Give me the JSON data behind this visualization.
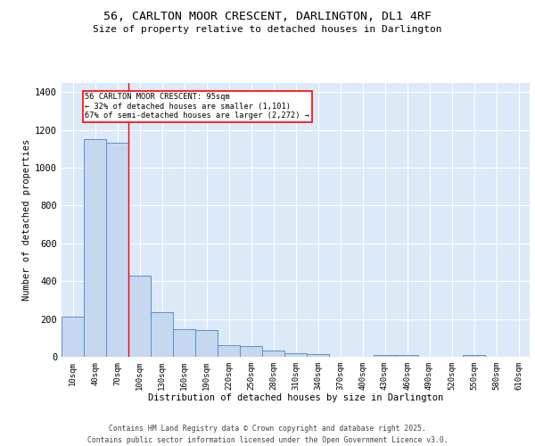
{
  "title_line1": "56, CARLTON MOOR CRESCENT, DARLINGTON, DL1 4RF",
  "title_line2": "Size of property relative to detached houses in Darlington",
  "xlabel": "Distribution of detached houses by size in Darlington",
  "ylabel": "Number of detached properties",
  "categories": [
    "10sqm",
    "40sqm",
    "70sqm",
    "100sqm",
    "130sqm",
    "160sqm",
    "190sqm",
    "220sqm",
    "250sqm",
    "280sqm",
    "310sqm",
    "340sqm",
    "370sqm",
    "400sqm",
    "430sqm",
    "460sqm",
    "490sqm",
    "520sqm",
    "550sqm",
    "580sqm",
    "610sqm"
  ],
  "values": [
    210,
    1150,
    1130,
    430,
    235,
    145,
    140,
    60,
    55,
    35,
    20,
    15,
    0,
    0,
    10,
    10,
    0,
    0,
    10,
    0,
    0
  ],
  "bar_color": "#c5d8f0",
  "bar_edge_color": "#5b8fc9",
  "red_line_index": 3,
  "annotation_title": "56 CARLTON MOOR CRESCENT: 95sqm",
  "annotation_line1": "← 32% of detached houses are smaller (1,101)",
  "annotation_line2": "67% of semi-detached houses are larger (2,272) →",
  "ylim": [
    0,
    1450
  ],
  "yticks": [
    0,
    200,
    400,
    600,
    800,
    1000,
    1200,
    1400
  ],
  "bg_color": "#dce9f8",
  "footer_line1": "Contains HM Land Registry data © Crown copyright and database right 2025.",
  "footer_line2": "Contains public sector information licensed under the Open Government Licence v3.0."
}
